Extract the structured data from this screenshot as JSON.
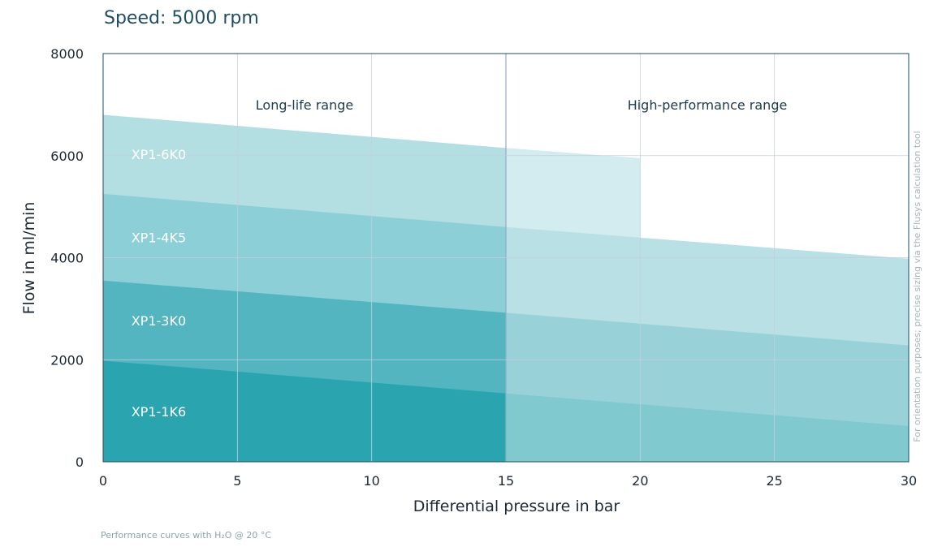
{
  "chart_data": {
    "type": "area",
    "title": "Speed: 5000 rpm",
    "xlabel": "Differential pressure in bar",
    "ylabel": "Flow in ml/min",
    "xlim": [
      0,
      30
    ],
    "ylim": [
      0,
      8000
    ],
    "x_ticks": [
      0,
      5,
      10,
      15,
      20,
      25,
      30
    ],
    "y_ticks": [
      0,
      2000,
      4000,
      6000,
      8000
    ],
    "grid": true,
    "ranges": [
      {
        "label": "Long-life range",
        "from": 0,
        "to": 15
      },
      {
        "label": "High-performance range",
        "from": 15,
        "to": 30
      }
    ],
    "series": [
      {
        "name": "XP1-6K0",
        "color": "#b3dfe3",
        "highlight_color": "#d3ecef",
        "x": [
          0,
          15,
          20
        ],
        "y": [
          6800,
          6150,
          5950
        ]
      },
      {
        "name": "XP1-4K5",
        "color": "#8ccfd6",
        "highlight_color": "#b9e0e4",
        "x": [
          0,
          15,
          30
        ],
        "y": [
          5250,
          4600,
          3980
        ]
      },
      {
        "name": "XP1-3K0",
        "color": "#52b5c0",
        "highlight_color": "#98d2d8",
        "x": [
          0,
          15,
          30
        ],
        "y": [
          3550,
          2920,
          2280
        ]
      },
      {
        "name": "XP1-1K6",
        "color": "#2aa5b0",
        "highlight_color": "#7fc9cf",
        "x": [
          0,
          15,
          30
        ],
        "y": [
          1980,
          1340,
          700
        ]
      }
    ],
    "side_note": "For orientation purposes; precise sizing via the Flusys calculation tool",
    "footnote": "Performance curves with H₂O @ 20 °C"
  }
}
